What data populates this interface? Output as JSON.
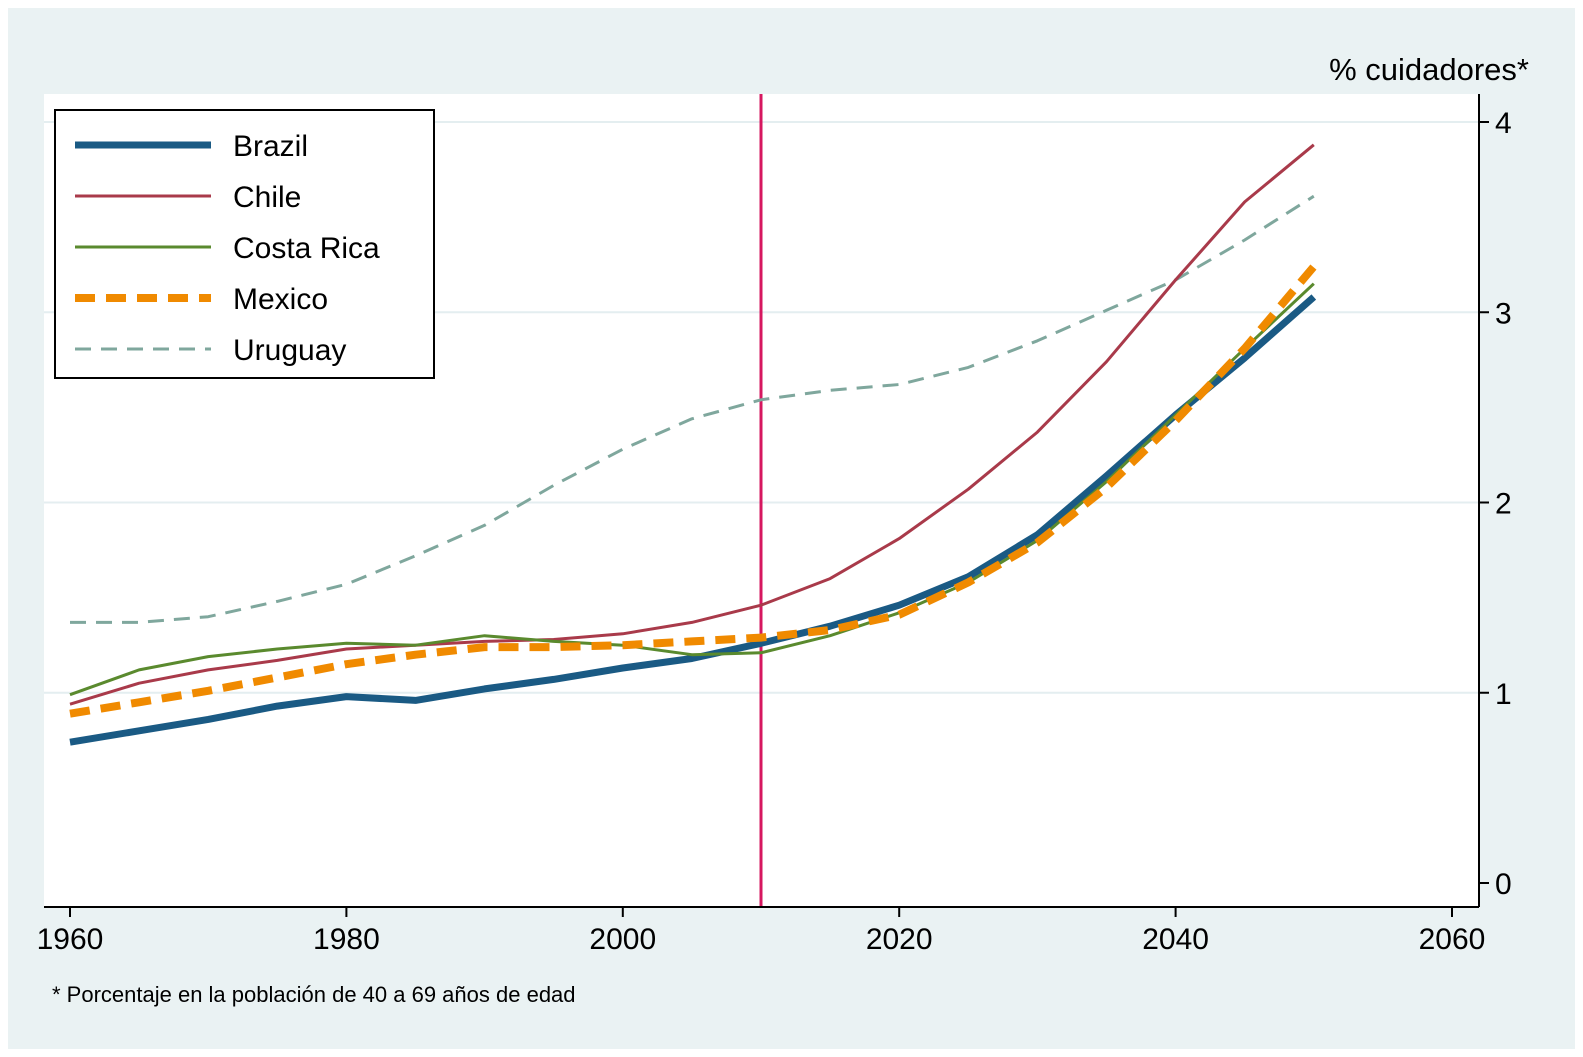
{
  "chart_data": {
    "type": "line",
    "ylabel": "% cuidadores*",
    "xlim": [
      1960,
      2060
    ],
    "ylim": [
      0,
      4.1
    ],
    "x_ticks": [
      1960,
      1980,
      2000,
      2020,
      2040,
      2060
    ],
    "y_ticks": [
      0,
      1,
      2,
      3,
      4
    ],
    "y_axis_position": "right",
    "grid": true,
    "legend_position": "top-left",
    "vertical_marker": 2010,
    "note": "* Porcentaje en la población de 40 a 69 años de edad",
    "x": [
      1960,
      1965,
      1970,
      1975,
      1980,
      1985,
      1990,
      1995,
      2000,
      2005,
      2010,
      2015,
      2020,
      2025,
      2030,
      2035,
      2040,
      2045,
      2050
    ],
    "series": [
      {
        "name": "Brazil",
        "color": "#1a5a84",
        "style": "solid-thick",
        "values": [
          0.74,
          0.8,
          0.86,
          0.93,
          0.98,
          0.96,
          1.02,
          1.07,
          1.13,
          1.18,
          1.26,
          1.35,
          1.46,
          1.61,
          1.83,
          2.14,
          2.46,
          2.76,
          3.08
        ]
      },
      {
        "name": "Chile",
        "color": "#a93a4a",
        "style": "solid-thin",
        "values": [
          0.94,
          1.05,
          1.12,
          1.17,
          1.23,
          1.25,
          1.27,
          1.28,
          1.31,
          1.37,
          1.46,
          1.6,
          1.81,
          2.07,
          2.37,
          2.74,
          3.17,
          3.58,
          3.88
        ]
      },
      {
        "name": "Costa Rica",
        "color": "#5a8a2e",
        "style": "solid-thin",
        "values": [
          0.99,
          1.12,
          1.19,
          1.23,
          1.26,
          1.25,
          1.3,
          1.27,
          1.25,
          1.2,
          1.21,
          1.3,
          1.42,
          1.58,
          1.8,
          2.11,
          2.46,
          2.81,
          3.15
        ]
      },
      {
        "name": "Mexico",
        "color": "#f08a00",
        "style": "dashed-thick",
        "values": [
          0.89,
          0.95,
          1.01,
          1.08,
          1.15,
          1.2,
          1.24,
          1.24,
          1.25,
          1.27,
          1.29,
          1.33,
          1.41,
          1.58,
          1.79,
          2.08,
          2.43,
          2.81,
          3.24
        ]
      },
      {
        "name": "Uruguay",
        "color": "#7fa79d",
        "style": "dashed-thin",
        "values": [
          1.37,
          1.37,
          1.4,
          1.48,
          1.57,
          1.72,
          1.88,
          2.09,
          2.28,
          2.44,
          2.54,
          2.59,
          2.62,
          2.71,
          2.85,
          3.01,
          3.17,
          3.38,
          3.61
        ]
      }
    ]
  }
}
